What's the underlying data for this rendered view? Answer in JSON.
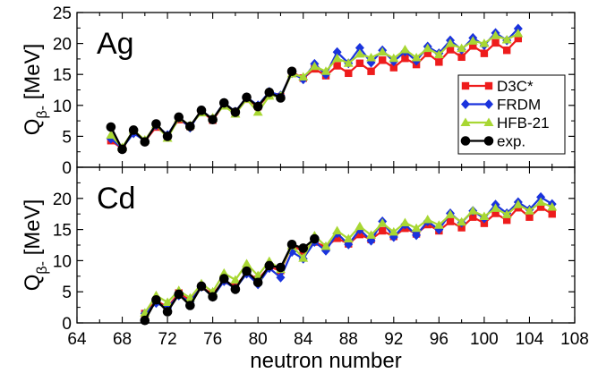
{
  "chart_data": {
    "type": "line",
    "xlabel": "neutron number",
    "ylabel_main": "Q",
    "ylabel_sub": "β-",
    "ylabel_unit": " [MeV]",
    "xlim": [
      64,
      108
    ],
    "xticks": [
      "64",
      "68",
      "72",
      "76",
      "80",
      "84",
      "88",
      "92",
      "96",
      "100",
      "104",
      "108"
    ],
    "legend": {
      "position": "center-right of top panel",
      "entries": [
        "D3C*",
        "FRDM",
        "HFB-21",
        "exp."
      ]
    },
    "series_colors": {
      "D3C*": "#ee1c1c",
      "FRDM": "#1a33dd",
      "HFB-21": "#a8d733",
      "exp.": "#000000"
    },
    "panels": [
      {
        "label": "Ag",
        "ylim": [
          0,
          25
        ],
        "yticks": [
          "0",
          "5",
          "10",
          "15",
          "20",
          "25"
        ],
        "series": [
          {
            "name": "D3C*",
            "x": [
              67,
              68,
              69,
              70,
              71,
              72,
              73,
              74,
              75,
              76,
              77,
              78,
              79,
              80,
              81,
              82,
              83,
              84,
              85,
              86,
              87,
              88,
              89,
              90,
              91,
              92,
              93,
              94,
              95,
              96,
              97,
              98,
              99,
              100,
              101,
              102,
              103
            ],
            "values": [
              4.3,
              3.0,
              5.8,
              4.2,
              6.5,
              5.1,
              7.7,
              6.6,
              9.0,
              7.6,
              10.2,
              8.7,
              11.0,
              9.8,
              11.8,
              11.4,
              15.4,
              14.4,
              15.9,
              14.8,
              16.4,
              15.2,
              16.8,
              15.5,
              17.3,
              16.1,
              17.6,
              16.6,
              18.4,
              17.0,
              19.0,
              17.8,
              19.6,
              18.4,
              20.1,
              18.9,
              20.8
            ]
          },
          {
            "name": "FRDM",
            "x": [
              67,
              68,
              69,
              70,
              71,
              72,
              73,
              74,
              75,
              76,
              77,
              78,
              79,
              80,
              81,
              82,
              83,
              84,
              85,
              86,
              87,
              88,
              89,
              90,
              91,
              92,
              93,
              94,
              95,
              96,
              97,
              98,
              99,
              100,
              101,
              102,
              103
            ],
            "values": [
              4.6,
              3.1,
              5.5,
              4.3,
              6.8,
              5.2,
              8.0,
              6.4,
              9.2,
              7.8,
              10.4,
              9.0,
              11.3,
              10.0,
              12.2,
              11.6,
              15.2,
              14.2,
              16.7,
              15.0,
              18.6,
              16.8,
              19.3,
              16.9,
              18.9,
              17.1,
              18.7,
              17.2,
              19.5,
              18.4,
              20.5,
              19.0,
              20.9,
              19.7,
              21.7,
              20.5,
              22.4
            ]
          },
          {
            "name": "HFB-21",
            "x": [
              67,
              68,
              69,
              70,
              71,
              72,
              73,
              74,
              75,
              76,
              77,
              78,
              79,
              80,
              81,
              82,
              83,
              84,
              85,
              86,
              87,
              88,
              89,
              90,
              91,
              92,
              93,
              94,
              95,
              96,
              97,
              98,
              99,
              100,
              101,
              102,
              103
            ],
            "values": [
              5.2,
              3.2,
              6.0,
              4.4,
              6.9,
              4.7,
              7.9,
              6.8,
              8.8,
              8.0,
              9.9,
              8.6,
              11.0,
              8.9,
              11.5,
              11.5,
              15.1,
              14.6,
              16.3,
              15.5,
              17.6,
              16.8,
              18.3,
              17.7,
              18.6,
              17.6,
              19.0,
              17.7,
              19.2,
              18.2,
              20.0,
              19.2,
              20.4,
              20.0,
              21.3,
              20.6,
              21.6
            ]
          },
          {
            "name": "exp.",
            "x": [
              67,
              68,
              69,
              70,
              71,
              72,
              73,
              74,
              75,
              76,
              77,
              78,
              79,
              80,
              81,
              82,
              83
            ],
            "values": [
              6.5,
              2.9,
              6.0,
              4.1,
              7.0,
              5.0,
              8.1,
              6.6,
              9.2,
              7.7,
              10.4,
              8.9,
              11.3,
              9.8,
              12.1,
              11.2,
              15.5
            ]
          }
        ]
      },
      {
        "label": "Cd",
        "ylim": [
          0,
          25
        ],
        "yticks": [
          "0",
          "5",
          "10",
          "15",
          "20"
        ],
        "series": [
          {
            "name": "D3C*",
            "x": [
              70,
              71,
              72,
              73,
              74,
              75,
              76,
              77,
              78,
              79,
              80,
              81,
              82,
              83,
              84,
              85,
              86,
              87,
              88,
              89,
              90,
              91,
              92,
              93,
              94,
              95,
              96,
              97,
              98,
              99,
              100,
              101,
              102,
              103,
              104,
              105,
              106
            ],
            "values": [
              1.5,
              3.6,
              2.5,
              4.8,
              3.6,
              5.8,
              4.6,
              6.8,
              5.9,
              8.0,
              7.0,
              9.0,
              8.4,
              12.4,
              11.5,
              13.0,
              12.2,
              13.6,
              12.7,
              14.2,
              13.4,
              14.8,
              13.9,
              15.2,
              14.3,
              15.8,
              14.8,
              16.3,
              15.3,
              17.0,
              16.0,
              17.6,
              16.5,
              18.5,
              17.0,
              18.6,
              17.5
            ]
          },
          {
            "name": "FRDM",
            "x": [
              70,
              71,
              72,
              73,
              74,
              75,
              76,
              77,
              78,
              79,
              80,
              81,
              82,
              83,
              84,
              85,
              86,
              87,
              88,
              89,
              90,
              91,
              92,
              93,
              94,
              95,
              96,
              97,
              98,
              99,
              100,
              101,
              102,
              103,
              104,
              105,
              106
            ],
            "values": [
              1.5,
              3.2,
              2.4,
              4.4,
              3.4,
              5.8,
              4.2,
              6.7,
              5.5,
              7.9,
              6.2,
              8.8,
              7.3,
              11.4,
              10.3,
              13.0,
              11.6,
              14.4,
              12.6,
              15.0,
              13.2,
              16.3,
              13.8,
              15.8,
              14.1,
              16.3,
              15.0,
              17.6,
              16.1,
              18.0,
              16.8,
              19.0,
              17.6,
              19.4,
              18.2,
              20.2,
              19.1
            ]
          },
          {
            "name": "HFB-21",
            "x": [
              70,
              71,
              72,
              73,
              74,
              75,
              76,
              77,
              78,
              79,
              80,
              81,
              82,
              83,
              84,
              85,
              86,
              87,
              88,
              89,
              90,
              91,
              92,
              93,
              94,
              95,
              96,
              97,
              98,
              99,
              100,
              101,
              102,
              103,
              104,
              105,
              106
            ],
            "values": [
              1.6,
              4.4,
              3.3,
              5.2,
              4.0,
              6.3,
              5.0,
              8.0,
              6.9,
              9.5,
              7.6,
              9.9,
              8.6,
              12.4,
              10.4,
              14.0,
              12.3,
              14.8,
              13.5,
              15.5,
              14.1,
              16.0,
              14.6,
              16.1,
              15.2,
              16.6,
              15.7,
              17.4,
              16.2,
              18.0,
              17.1,
              18.4,
              17.4,
              19.0,
              18.0,
              19.4,
              18.6
            ]
          },
          {
            "name": "exp.",
            "x": [
              70,
              71,
              72,
              73,
              74,
              75,
              76,
              77,
              78,
              79,
              80,
              81,
              82,
              83,
              84,
              85
            ],
            "values": [
              0.4,
              3.7,
              1.8,
              4.6,
              2.8,
              5.9,
              4.2,
              7.1,
              5.4,
              8.3,
              6.5,
              9.2,
              8.9,
              12.6,
              12.0,
              13.5
            ]
          }
        ]
      }
    ]
  }
}
